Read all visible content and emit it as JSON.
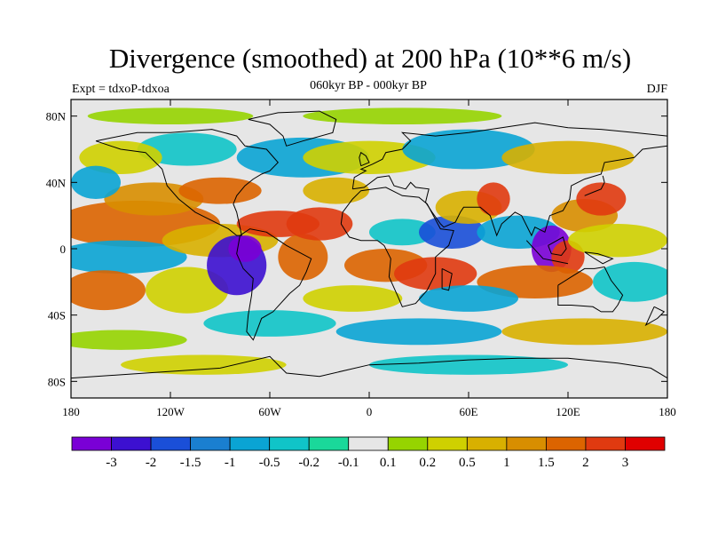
{
  "title": "Divergence (smoothed) at 200 hPa (10**6 m/s)",
  "subtitle": "060kyr BP - 000kyr BP",
  "left_label": "Expt = tdxoP-tdxoa",
  "right_label": "DJF",
  "axes": {
    "lat_ticks": [
      "80N",
      "40N",
      "0",
      "40S",
      "80S"
    ],
    "lat_values": [
      80,
      40,
      0,
      -40,
      -80
    ],
    "lon_ticks": [
      "180",
      "120W",
      "60W",
      "0",
      "60E",
      "120E",
      "180"
    ],
    "lon_values": [
      -180,
      -120,
      -60,
      0,
      60,
      120,
      180
    ],
    "lon_range": [
      -180,
      180
    ],
    "lat_range": [
      -90,
      90
    ]
  },
  "colorbar": {
    "colors": [
      "#7a00d6",
      "#3c10d0",
      "#1a4fd8",
      "#1a7fd0",
      "#0aa4d4",
      "#10c4c8",
      "#1ad89a",
      "#e6e6e6",
      "#96d400",
      "#cfd000",
      "#d8b000",
      "#d88e00",
      "#dc6400",
      "#e03a10",
      "#e00000"
    ],
    "labels": [
      "-3",
      "-2",
      "-1.5",
      "-1",
      "-0.5",
      "-0.2",
      "-0.1",
      "0.1",
      "0.2",
      "0.5",
      "1",
      "1.5",
      "2",
      "3"
    ]
  },
  "colors": {
    "land_outline": "#000000",
    "neutral": "#e6e6e6"
  }
}
